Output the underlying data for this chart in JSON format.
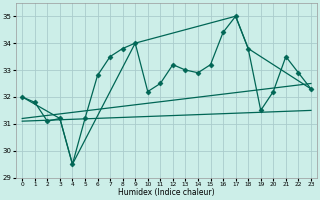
{
  "xlabel": "Humidex (Indice chaleur)",
  "xlim": [
    -0.5,
    23.5
  ],
  "ylim": [
    29,
    35.5
  ],
  "yticks": [
    29,
    30,
    31,
    32,
    33,
    34,
    35
  ],
  "xticks": [
    0,
    1,
    2,
    3,
    4,
    5,
    6,
    7,
    8,
    9,
    10,
    11,
    12,
    13,
    14,
    15,
    16,
    17,
    18,
    19,
    20,
    21,
    22,
    23
  ],
  "background_color": "#cceee8",
  "grid_color": "#aacccc",
  "line_color": "#006655",
  "lines": [
    {
      "x": [
        0,
        1,
        2,
        3,
        4,
        5,
        6,
        7,
        8,
        9,
        10,
        11,
        12,
        13,
        14,
        15,
        16,
        17,
        18,
        19,
        20,
        21,
        22,
        23
      ],
      "y": [
        32.0,
        31.8,
        31.1,
        31.2,
        29.5,
        31.2,
        32.8,
        33.5,
        33.8,
        34.0,
        32.2,
        32.5,
        33.2,
        33.0,
        32.9,
        33.2,
        34.4,
        35.0,
        33.8,
        31.5,
        32.2,
        33.5,
        32.9,
        32.3
      ],
      "marker": "D",
      "markersize": 2.5,
      "linewidth": 0.9
    },
    {
      "x": [
        0,
        3,
        4,
        9,
        17,
        18,
        23
      ],
      "y": [
        32.0,
        31.2,
        29.5,
        34.0,
        35.0,
        33.8,
        32.3
      ],
      "marker": null,
      "markersize": 0,
      "linewidth": 0.9
    },
    {
      "x": [
        0,
        23
      ],
      "y": [
        31.2,
        32.5
      ],
      "marker": null,
      "markersize": 0,
      "linewidth": 0.9
    },
    {
      "x": [
        0,
        23
      ],
      "y": [
        31.1,
        31.5
      ],
      "marker": null,
      "markersize": 0,
      "linewidth": 0.9
    }
  ]
}
